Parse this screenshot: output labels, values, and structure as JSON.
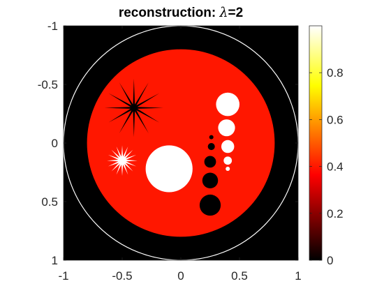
{
  "chart_data": {
    "type": "heatmap",
    "title": {
      "prefix": "reconstruction: ",
      "symbol": "λ",
      "suffix": "=2"
    },
    "xlabel": "",
    "ylabel": "",
    "xlim": [
      -1,
      1
    ],
    "ylim": [
      -1,
      1
    ],
    "y_direction": "reverse",
    "x_ticks": [
      {
        "value": -1,
        "label": "-1"
      },
      {
        "value": -0.5,
        "label": "-0.5"
      },
      {
        "value": 0,
        "label": "0"
      },
      {
        "value": 0.5,
        "label": "0.5"
      },
      {
        "value": 1,
        "label": "1"
      }
    ],
    "y_ticks": [
      {
        "value": -1,
        "label": "-1"
      },
      {
        "value": -0.5,
        "label": "-0.5"
      },
      {
        "value": 0,
        "label": "0"
      },
      {
        "value": 0.5,
        "label": "0.5"
      },
      {
        "value": 1,
        "label": "1"
      }
    ],
    "grid": false,
    "colormap": "hot",
    "colorbar": {
      "range": [
        0,
        1
      ],
      "ticks": [
        {
          "value": 0,
          "label": "0"
        },
        {
          "value": 0.2,
          "label": "0.2"
        },
        {
          "value": 0.4,
          "label": "0.4"
        },
        {
          "value": 0.6,
          "label": "0.6"
        },
        {
          "value": 0.8,
          "label": "0.8"
        }
      ]
    },
    "background_value": 0,
    "boundary_circle": {
      "cx": 0,
      "cy": 0,
      "r": 1,
      "color": "#ffffff"
    },
    "phantom": {
      "disc": {
        "cx": 0,
        "cy": 0,
        "r": 0.8,
        "value": 0.4
      },
      "stars": [
        {
          "name": "dark-star",
          "cx": -0.4,
          "cy": -0.3,
          "r_outer": 0.25,
          "r_inner": 0.03,
          "points": 12,
          "value": 0
        },
        {
          "name": "bright-star",
          "cx": -0.5,
          "cy": 0.15,
          "r_outer": 0.13,
          "r_inner": 0.035,
          "points": 16,
          "value": 1
        }
      ],
      "circles": [
        {
          "name": "large-bright-disc",
          "cx": -0.1,
          "cy": 0.22,
          "r": 0.2,
          "value": 1
        },
        {
          "name": "bright-dot-1",
          "cx": 0.4,
          "cy": -0.33,
          "r": 0.1,
          "value": 1
        },
        {
          "name": "bright-dot-2",
          "cx": 0.39,
          "cy": -0.13,
          "r": 0.072,
          "value": 1
        },
        {
          "name": "bright-dot-3",
          "cx": 0.4,
          "cy": 0.03,
          "r": 0.055,
          "value": 1
        },
        {
          "name": "bright-dot-4",
          "cx": 0.4,
          "cy": 0.15,
          "r": 0.035,
          "value": 1
        },
        {
          "name": "bright-dot-5",
          "cx": 0.4,
          "cy": 0.22,
          "r": 0.018,
          "value": 1
        },
        {
          "name": "dark-dot-1",
          "cx": 0.26,
          "cy": -0.05,
          "r": 0.018,
          "value": 0
        },
        {
          "name": "dark-dot-2",
          "cx": 0.26,
          "cy": 0.03,
          "r": 0.03,
          "value": 0
        },
        {
          "name": "dark-dot-3",
          "cx": 0.25,
          "cy": 0.16,
          "r": 0.05,
          "value": 0
        },
        {
          "name": "dark-dot-4",
          "cx": 0.25,
          "cy": 0.32,
          "r": 0.067,
          "value": 0
        },
        {
          "name": "dark-dot-5",
          "cx": 0.25,
          "cy": 0.53,
          "r": 0.09,
          "value": 0
        }
      ]
    }
  }
}
